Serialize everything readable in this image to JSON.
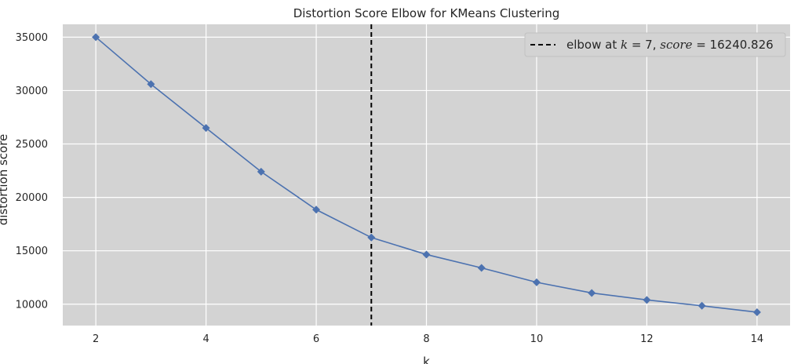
{
  "chart_data": {
    "type": "line",
    "title": "Distortion Score Elbow for KMeans Clustering",
    "xlabel": "k",
    "ylabel": "distortion score",
    "x": [
      2,
      3,
      4,
      5,
      6,
      7,
      8,
      9,
      10,
      11,
      12,
      13,
      14
    ],
    "series": [
      {
        "values": [
          35000,
          30600,
          26500,
          22400,
          18850,
          16240.826,
          14650,
          13400,
          12050,
          11050,
          10400,
          9850,
          9250
        ],
        "color": "#4c72b0",
        "marker": "diamond"
      }
    ],
    "xlim": [
      1.4,
      14.6
    ],
    "ylim": [
      8000,
      36200
    ],
    "xticks": [
      2,
      4,
      6,
      8,
      10,
      12,
      14
    ],
    "yticks": [
      10000,
      15000,
      20000,
      25000,
      30000,
      35000
    ],
    "xtick_labels": [
      "2",
      "4",
      "6",
      "8",
      "10",
      "12",
      "14"
    ],
    "ytick_labels": [
      "10000",
      "15000",
      "20000",
      "25000",
      "30000",
      "35000"
    ],
    "grid": true,
    "background_color": "#d3d3d3",
    "grid_color": "#ffffff",
    "elbow": {
      "k": 7,
      "score": 16240.826,
      "color": "#000000",
      "linestyle": "dashed"
    },
    "legend": {
      "placement": "top-right",
      "prefix": "elbow at ",
      "k_sym": "k",
      "eq1": " = 7, ",
      "score_sym": "score",
      "eq2": " = 16240.826"
    }
  }
}
